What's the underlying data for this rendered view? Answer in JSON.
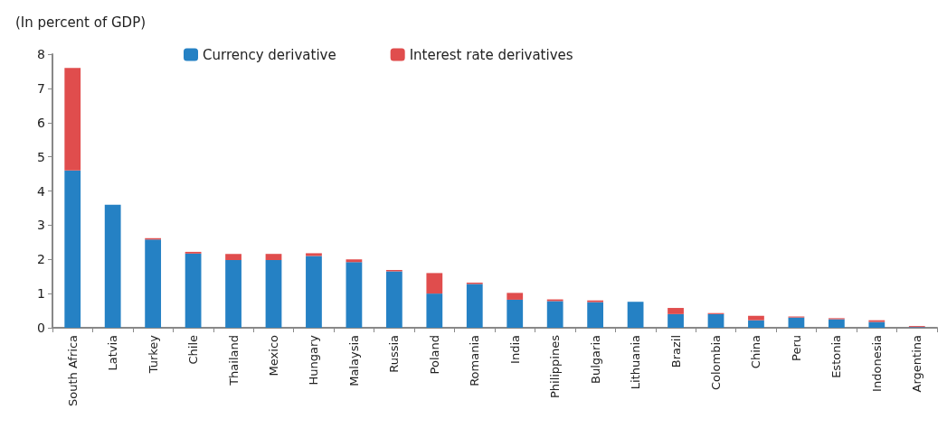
{
  "chart_data": {
    "type": "bar",
    "title": "(In percent of GDP)",
    "stacked": true,
    "categories": [
      "South Africa",
      "Latvia",
      "Turkey",
      "Chile",
      "Thailand",
      "Mexico",
      "Hungary",
      "Malaysia",
      "Russia",
      "Poland",
      "Romania",
      "India",
      "Philippines",
      "Bulgaria",
      "Lithuania",
      "Brazil",
      "Colombia",
      "China",
      "Peru",
      "Estonia",
      "Indonesia",
      "Argentina"
    ],
    "series": [
      {
        "name": "Currency derivative",
        "color": "#2581c4",
        "values": [
          4.6,
          3.6,
          2.58,
          2.17,
          1.98,
          1.98,
          2.1,
          1.92,
          1.65,
          1.0,
          1.28,
          0.82,
          0.78,
          0.75,
          0.76,
          0.4,
          0.4,
          0.22,
          0.3,
          0.25,
          0.17,
          0.02
        ]
      },
      {
        "name": "Interest rate derivatives",
        "color": "#e04d4d",
        "values": [
          3.0,
          0,
          0.04,
          0.05,
          0.18,
          0.18,
          0.08,
          0.08,
          0.04,
          0.6,
          0.04,
          0.2,
          0.05,
          0.05,
          0,
          0.18,
          0.03,
          0.13,
          0.03,
          0.03,
          0.05,
          0.03
        ]
      }
    ],
    "ylim": [
      0,
      8
    ],
    "yticks": [
      0,
      1,
      2,
      3,
      4,
      5,
      6,
      7,
      8
    ],
    "grid": false,
    "legend": "top"
  }
}
